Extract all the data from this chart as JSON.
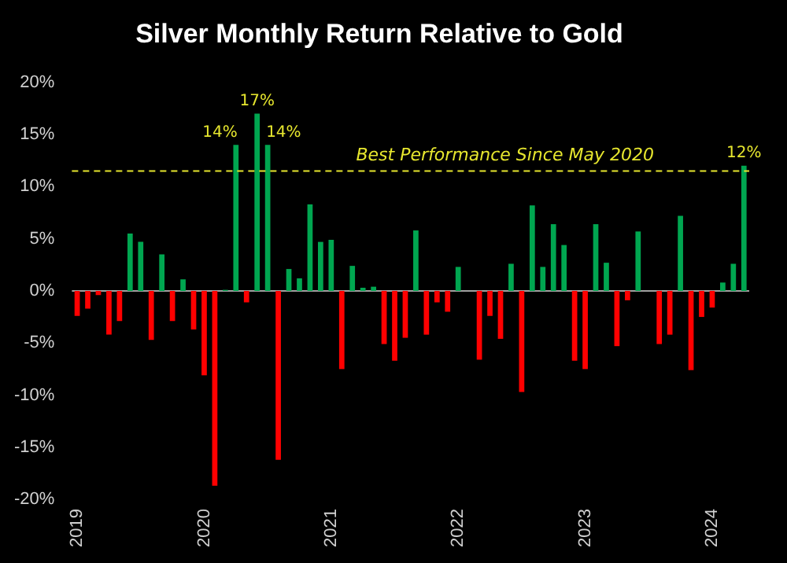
{
  "chart_data": {
    "type": "bar",
    "title": "Silver Monthly Return Relative to Gold",
    "categories": [
      "2019",
      null,
      null,
      null,
      null,
      null,
      null,
      null,
      null,
      null,
      null,
      null,
      "2020",
      null,
      null,
      null,
      null,
      null,
      null,
      null,
      null,
      null,
      null,
      null,
      "2021",
      null,
      null,
      null,
      null,
      null,
      null,
      null,
      null,
      null,
      null,
      null,
      "2022",
      null,
      null,
      null,
      null,
      null,
      null,
      null,
      null,
      null,
      null,
      null,
      "2023",
      null,
      null,
      null,
      null,
      null,
      null,
      null,
      null,
      null,
      null,
      null,
      "2024",
      null,
      null,
      null
    ],
    "values": [
      -2.4,
      -1.7,
      -0.4,
      -4.2,
      -2.9,
      5.5,
      4.7,
      -4.7,
      3.5,
      -2.9,
      1.1,
      -3.7,
      -8.1,
      -18.7,
      0.1,
      14,
      -1.1,
      17,
      14,
      -16.2,
      2.1,
      1.2,
      8.3,
      4.7,
      4.9,
      -7.5,
      2.4,
      0.3,
      0.4,
      -5.1,
      -6.7,
      -4.5,
      5.8,
      -4.2,
      -1.1,
      -2.0,
      2.3,
      0,
      -6.6,
      -2.4,
      -4.6,
      2.6,
      -9.7,
      8.2,
      2.3,
      6.4,
      4.4,
      -6.7,
      -7.5,
      6.4,
      2.7,
      -5.3,
      -0.9,
      5.7,
      0,
      -5.1,
      -4.2,
      7.2,
      -7.6,
      -2.5,
      -1.6,
      0.8,
      2.6,
      12
    ],
    "colors": [
      "#ff0000",
      "#ff0000",
      "#ff0000",
      "#ff0000",
      "#ff0000",
      "#00a650",
      "#00a650",
      "#ff0000",
      "#00a650",
      "#ff0000",
      "#00a650",
      "#ff0000",
      "#ff0000",
      "#ff0000",
      "#00a650",
      "#00a650",
      "#ff0000",
      "#00a650",
      "#00a650",
      "#ff0000",
      "#00a650",
      "#00a650",
      "#00a650",
      "#00a650",
      "#00a650",
      "#ff0000",
      "#00a650",
      "#00a650",
      "#00a650",
      "#ff0000",
      "#ff0000",
      "#ff0000",
      "#00a650",
      "#ff0000",
      "#ff0000",
      "#ff0000",
      "#00a650",
      "#00a650",
      "#ff0000",
      "#ff0000",
      "#ff0000",
      "#00a650",
      "#ff0000",
      "#00a650",
      "#00a650",
      "#00a650",
      "#00a650",
      "#ff0000",
      "#ff0000",
      "#00a650",
      "#00a650",
      "#ff0000",
      "#ff0000",
      "#00a650",
      "#00a650",
      "#ff0000",
      "#ff0000",
      "#00a650",
      "#ff0000",
      "#ff0000",
      "#ff0000",
      "#00a650",
      "#00a650",
      "#00a650"
    ],
    "value_labels": [
      null,
      null,
      null,
      null,
      null,
      null,
      null,
      null,
      null,
      null,
      null,
      null,
      null,
      null,
      null,
      "14%",
      null,
      "17%",
      "14%",
      null,
      null,
      null,
      null,
      null,
      null,
      null,
      null,
      null,
      null,
      null,
      null,
      null,
      null,
      null,
      null,
      null,
      null,
      null,
      null,
      null,
      null,
      null,
      null,
      null,
      null,
      null,
      null,
      null,
      null,
      null,
      null,
      null,
      null,
      null,
      null,
      null,
      null,
      null,
      null,
      null,
      null,
      null,
      null,
      "12%"
    ],
    "ylim": [
      -20,
      20
    ],
    "yticks": [
      {
        "value": -20,
        "label": "-20%"
      },
      {
        "value": -15,
        "label": "-15%"
      },
      {
        "value": -10,
        "label": "-10%"
      },
      {
        "value": -5,
        "label": "-5%"
      },
      {
        "value": 0,
        "label": "0%"
      },
      {
        "value": 5,
        "label": "5%"
      },
      {
        "value": 10,
        "label": "10%"
      },
      {
        "value": 15,
        "label": "15%"
      },
      {
        "value": 20,
        "label": "20%"
      }
    ],
    "ref_lines": [
      {
        "axis": "y",
        "value": 11.5,
        "label": "Best Performance Since May 2020",
        "color": "#e6e62e",
        "line_style": "dashed"
      }
    ],
    "legend": false
  }
}
